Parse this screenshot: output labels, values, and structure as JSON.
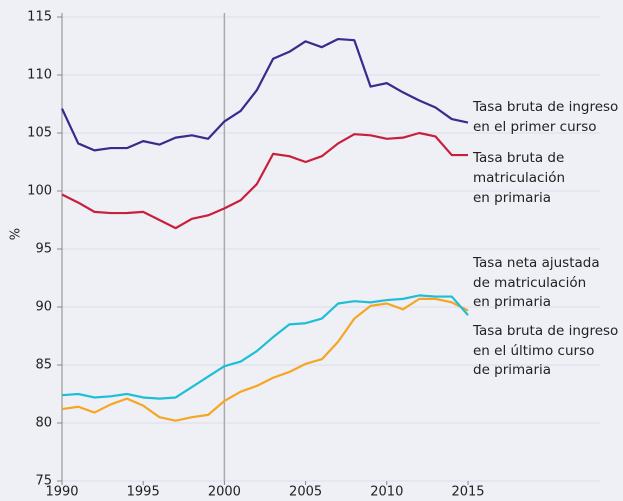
{
  "chart_data": {
    "type": "line",
    "y_label": "%",
    "x": [
      1990,
      1991,
      1992,
      1993,
      1994,
      1995,
      1996,
      1997,
      1998,
      1999,
      2000,
      2001,
      2002,
      2003,
      2004,
      2005,
      2006,
      2007,
      2008,
      2009,
      2010,
      2011,
      2012,
      2013,
      2014,
      2015
    ],
    "xlim": [
      1990,
      2015
    ],
    "xticks": [
      1990,
      1995,
      2000,
      2005,
      2010,
      2015
    ],
    "ylim": [
      75,
      115
    ],
    "yticks": [
      75,
      80,
      85,
      90,
      95,
      100,
      105,
      110,
      115
    ],
    "vline": 2000,
    "grid": true,
    "series": [
      {
        "name": [
          "Tasa bruta de ingreso",
          "en el primer curso"
        ],
        "color": "#3b2a8c",
        "values": [
          107.1,
          104.1,
          103.5,
          103.7,
          103.7,
          104.3,
          104.0,
          104.6,
          104.8,
          104.5,
          106.0,
          106.9,
          108.7,
          111.4,
          112.0,
          112.9,
          112.4,
          113.1,
          113.0,
          109.0,
          109.3,
          108.5,
          107.8,
          107.2,
          106.2,
          105.9
        ]
      },
      {
        "name": [
          "Tasa bruta de",
          "matriculación",
          "en primaria"
        ],
        "color": "#c8203c",
        "values": [
          99.7,
          99.0,
          98.2,
          98.1,
          98.1,
          98.2,
          97.5,
          96.8,
          97.6,
          97.9,
          98.5,
          99.2,
          100.6,
          103.2,
          103.0,
          102.5,
          103.0,
          104.1,
          104.9,
          104.8,
          104.5,
          104.6,
          105.0,
          104.7,
          103.1,
          103.1
        ]
      },
      {
        "name": [
          "Tasa neta ajustada",
          "de matriculación",
          "en primaria"
        ],
        "color": "#f5a623",
        "values": [
          81.2,
          81.4,
          80.9,
          81.6,
          82.1,
          81.5,
          80.5,
          80.2,
          80.5,
          80.7,
          81.9,
          82.7,
          83.2,
          83.9,
          84.4,
          85.1,
          85.5,
          87.0,
          89.0,
          90.1,
          90.3,
          89.8,
          90.7,
          90.7,
          90.4,
          89.7
        ]
      },
      {
        "name": [
          "Tasa bruta de ingreso",
          "en el último curso",
          "de primaria"
        ],
        "color": "#1ebfd6",
        "values": [
          82.4,
          82.5,
          82.2,
          82.3,
          82.5,
          82.2,
          82.1,
          82.2,
          83.1,
          84.0,
          84.9,
          85.3,
          86.2,
          87.4,
          88.5,
          88.6,
          89.0,
          90.3,
          90.5,
          90.4,
          90.6,
          90.7,
          91.0,
          90.9,
          90.9,
          89.3
        ]
      }
    ]
  }
}
